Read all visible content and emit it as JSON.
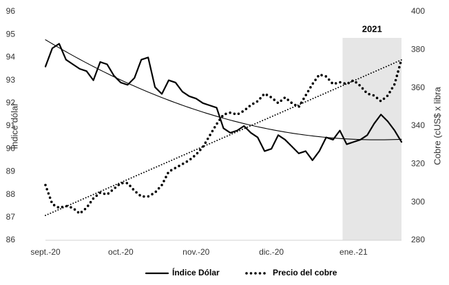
{
  "chart_data": {
    "type": "line",
    "categories": [
      "sept.-20",
      null,
      null,
      null,
      null,
      null,
      null,
      null,
      null,
      null,
      null,
      "oct.-20",
      null,
      null,
      null,
      null,
      null,
      null,
      null,
      null,
      null,
      null,
      "nov.-20",
      null,
      null,
      null,
      null,
      null,
      null,
      null,
      null,
      null,
      null,
      "dic.-20",
      null,
      null,
      null,
      null,
      null,
      null,
      null,
      null,
      null,
      null,
      null,
      "ene.-21",
      null,
      null,
      null,
      null,
      null,
      null,
      null
    ],
    "series": [
      {
        "name": "Índice Dólar",
        "color": "#000000",
        "style": "solid",
        "axis": "y",
        "trendline": "polynomial",
        "values": [
          93.6,
          94.4,
          94.6,
          93.9,
          93.7,
          93.5,
          93.4,
          93.0,
          93.8,
          93.7,
          93.2,
          92.9,
          92.8,
          93.1,
          93.9,
          94.0,
          92.7,
          92.4,
          93.0,
          92.9,
          92.5,
          92.3,
          92.2,
          92.0,
          91.9,
          91.8,
          90.9,
          90.7,
          90.8,
          91.0,
          90.7,
          90.5,
          89.9,
          90.0,
          90.6,
          90.4,
          90.1,
          89.8,
          89.9,
          89.5,
          89.9,
          90.5,
          90.4,
          90.8,
          90.2,
          90.3,
          90.4,
          90.6,
          91.1,
          91.5,
          91.2,
          90.8,
          90.3
        ]
      },
      {
        "name": "Precio del cobre",
        "color": "#000000",
        "style": "dotted",
        "axis": "y2",
        "trendline": "linear",
        "values": [
          309,
          299,
          297,
          298,
          297,
          294,
          297,
          302,
          305,
          304,
          307,
          310,
          310,
          306,
          303,
          303,
          305,
          309,
          316,
          318,
          320,
          322,
          325,
          329,
          335,
          341,
          346,
          347,
          346,
          348,
          351,
          353,
          357,
          355,
          352,
          355,
          352,
          350,
          356,
          362,
          367,
          366,
          362,
          363,
          362,
          364,
          361,
          357,
          356,
          353,
          356,
          362,
          375
        ]
      }
    ],
    "ylabel": "Índice dólar",
    "y2label": "Cobre (cUS$ x libra",
    "ylim": [
      86,
      96
    ],
    "yticks": [
      86,
      87,
      88,
      89,
      90,
      91,
      92,
      93,
      94,
      95,
      96
    ],
    "y2lim": [
      280,
      400
    ],
    "y2ticks": [
      280,
      300,
      320,
      340,
      360,
      380,
      400
    ],
    "highlight": {
      "label": "2021",
      "start": "ene.-21",
      "color": "#e6e6e6"
    },
    "grid": false,
    "legend": "bottom"
  }
}
